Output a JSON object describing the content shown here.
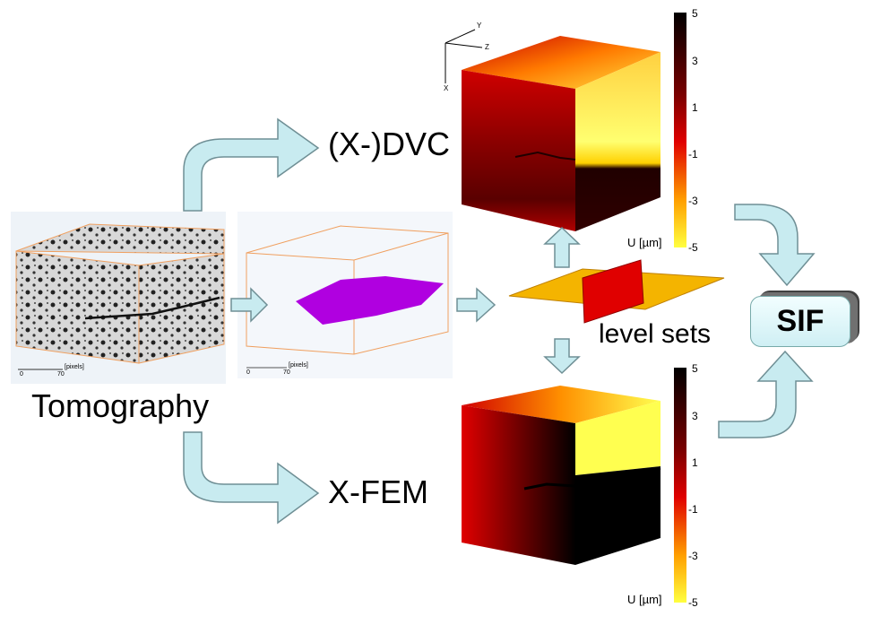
{
  "labels": {
    "tomography": "Tomography",
    "dvc": "(X-)DVC",
    "xfem": "X-FEM",
    "level_sets": "level sets",
    "sif": "SIF"
  },
  "scalebar": {
    "left_zero": "0",
    "left_value": "70",
    "left_unit": "[pixels]",
    "mid_zero": "0",
    "mid_value": "70",
    "mid_unit": "[pixels]"
  },
  "axes": {
    "x": "X",
    "y": "Y",
    "z": "Z"
  },
  "colorbar_top": {
    "ticks": [
      "5",
      "3",
      "1",
      "-1",
      "-3",
      "-5"
    ],
    "unit": "U [µm]"
  },
  "colorbar_bottom": {
    "ticks": [
      "5",
      "3",
      "1",
      "-1",
      "-3",
      "-5"
    ],
    "unit": "U [µm]"
  },
  "colors": {
    "arrow_fill": "#c8ebf0",
    "arrow_stroke": "#6f8f95",
    "purple": "#b000e0",
    "box_edge": "#f0a060"
  }
}
